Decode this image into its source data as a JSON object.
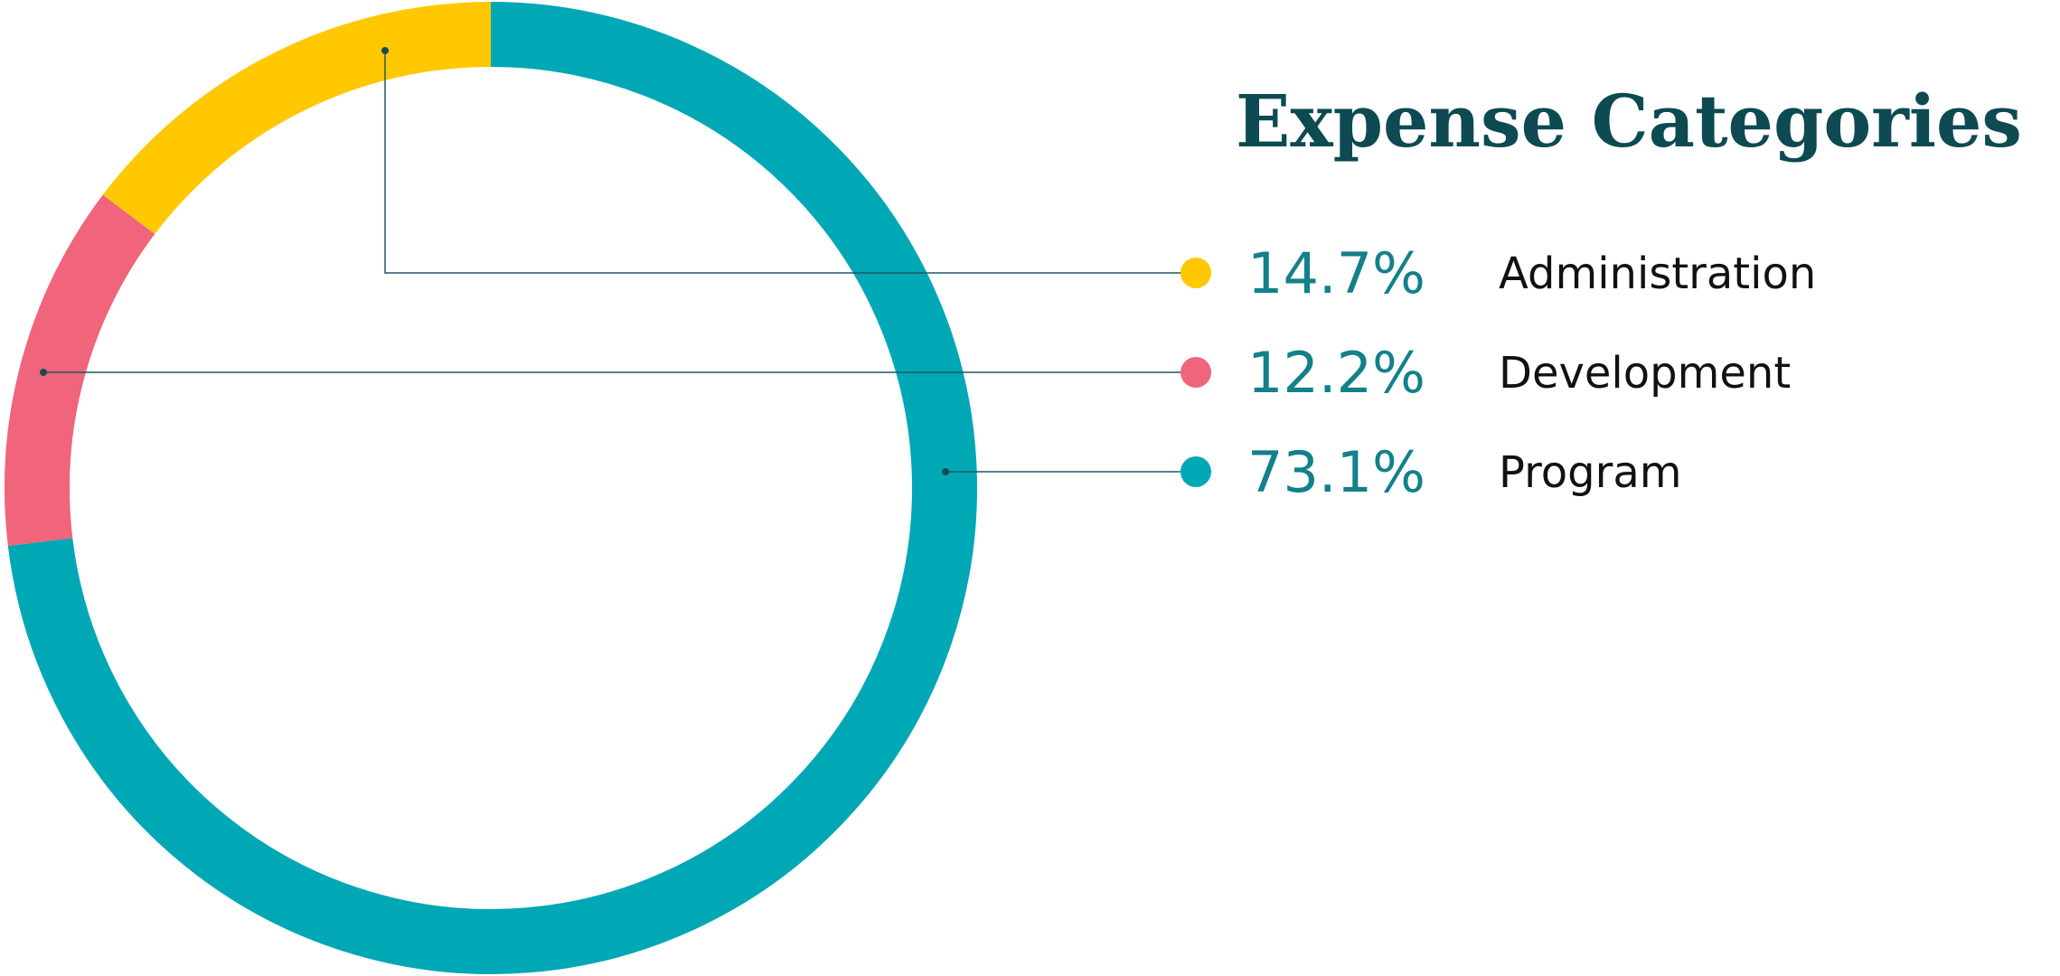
{
  "chart_data": {
    "type": "donut",
    "title": "Expense Categories",
    "categories": [
      "Administration",
      "Development",
      "Program"
    ],
    "values": [
      14.7,
      12.2,
      73.1
    ],
    "value_labels": [
      "14.7%",
      "12.2%",
      "73.1%"
    ],
    "colors": [
      "#ffc800",
      "#f0647c",
      "#00a7b5"
    ]
  }
}
